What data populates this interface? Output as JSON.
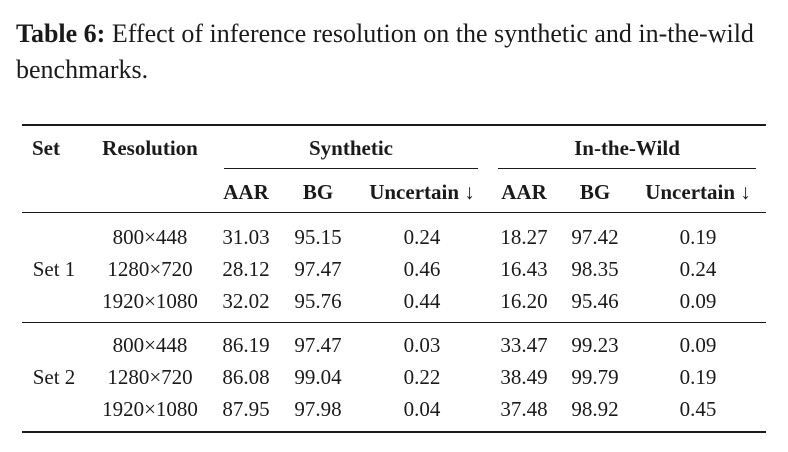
{
  "caption": {
    "label": "Table 6:",
    "text": " Effect of inference resolution on the synthetic and in-the-wild benchmarks."
  },
  "table": {
    "headers": {
      "set": "Set",
      "resolution": "Resolution",
      "synthetic": "Synthetic",
      "wild": "In-the-Wild",
      "aar": "AAR",
      "bg": "BG",
      "uncertain": "Uncertain ↓"
    },
    "groups": [
      {
        "name": "Set 1",
        "rows": [
          {
            "res": "800×448",
            "s_aar": "31.03",
            "s_bg": "95.15",
            "s_unc": "0.24",
            "w_aar": "18.27",
            "w_bg": "97.42",
            "w_unc": "0.19"
          },
          {
            "res": "1280×720",
            "s_aar": "28.12",
            "s_bg": "97.47",
            "s_unc": "0.46",
            "w_aar": "16.43",
            "w_bg": "98.35",
            "w_unc": "0.24"
          },
          {
            "res": "1920×1080",
            "s_aar": "32.02",
            "s_bg": "95.76",
            "s_unc": "0.44",
            "w_aar": "16.20",
            "w_bg": "95.46",
            "w_unc": "0.09"
          }
        ]
      },
      {
        "name": "Set 2",
        "rows": [
          {
            "res": "800×448",
            "s_aar": "86.19",
            "s_bg": "97.47",
            "s_unc": "0.03",
            "w_aar": "33.47",
            "w_bg": "99.23",
            "w_unc": "0.09"
          },
          {
            "res": "1280×720",
            "s_aar": "86.08",
            "s_bg": "99.04",
            "s_unc": "0.22",
            "w_aar": "38.49",
            "w_bg": "99.79",
            "w_unc": "0.19"
          },
          {
            "res": "1920×1080",
            "s_aar": "87.95",
            "s_bg": "97.98",
            "s_unc": "0.04",
            "w_aar": "37.48",
            "w_bg": "98.92",
            "w_unc": "0.45"
          }
        ]
      }
    ]
  }
}
